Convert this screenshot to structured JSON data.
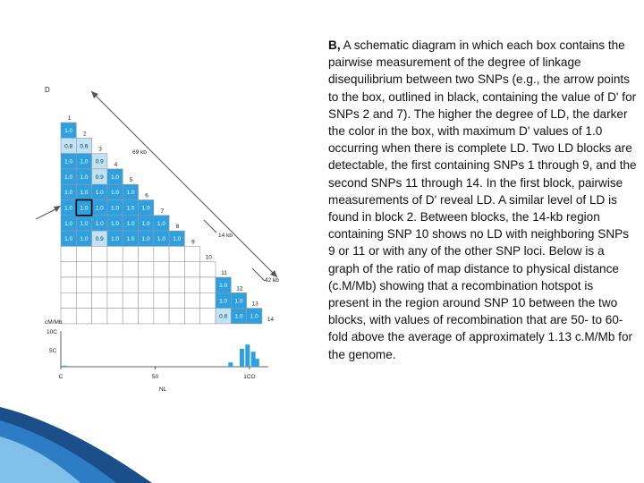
{
  "caption": {
    "prefix": "B,",
    "text": " A schematic diagram in which each box contains the pairwise measurement of the degree of linkage disequilibrium between two SNPs (e.g., the arrow points to the box, outlined in black, containing the value of D' for SNPs 2 and 7). The higher the degree of LD, the darker the color in the box, with maximum D' values of 1.0 occurring when there is complete LD. Two LD blocks are detectable, the first containing SNPs 1 through 9, and the second SNPs 11 through 14. In the first block, pairwise measurements of D' reveal LD. A similar level of LD is found in block 2. Between blocks, the 14-kb region containing SNP 10 shows no LD with neighboring SNPs 9 or 11 or with any of the other SNP loci. Below is a graph of the ratio of map distance to physical distance (c.M/Mb) showing that a recombination hotspot is present in the region around SNP 10 between the two blocks, with values of recombination that are 50- to 60-fold above the average of approximately 1.13 c.M/Mb for the genome."
  },
  "matrix": {
    "title": "D",
    "snp_labels": [
      "1",
      "2",
      "3",
      "4",
      "5",
      "6",
      "7",
      "8",
      "9",
      "10",
      "11",
      "12",
      "13",
      "14"
    ],
    "rows": [
      [
        "1.0"
      ],
      [
        "0.8",
        "0.6"
      ],
      [
        "1.0",
        "1.0",
        "0.9"
      ],
      [
        "1.0",
        "1.0",
        "0.9",
        "1.0"
      ],
      [
        "1.0",
        "1.0",
        "1.0",
        "1.0",
        "1.0"
      ],
      [
        "1.0",
        "1.0",
        "1.0",
        "1.0",
        "1.0",
        "1.0"
      ],
      [
        "1.0",
        "1.0",
        "1.0",
        "1.0",
        "1.0",
        "1.0",
        "1.0"
      ],
      [
        "1.0",
        "1.0",
        "0.9",
        "1.0",
        "1.0",
        "1.0",
        "1.0",
        "1.0"
      ],
      [
        "",
        "",
        "",
        "",
        "",
        "",
        "",
        "",
        ""
      ],
      [
        "",
        "",
        "",
        "",
        "",
        "",
        "",
        "",
        "",
        ""
      ],
      [
        "",
        "",
        "",
        "",
        "",
        "",
        "",
        "",
        "",
        "",
        "1.0"
      ],
      [
        "",
        "",
        "",
        "",
        "",
        "",
        "",
        "",
        "",
        "",
        "1.0",
        "1.0"
      ],
      [
        "",
        "",
        "",
        "",
        "",
        "",
        "",
        "",
        "",
        "",
        "0.8",
        "1.0",
        "1.0"
      ]
    ],
    "highlight": {
      "row": 5,
      "col": 1
    },
    "distance_labels": [
      "69 kb",
      "14 kb",
      "42 kb"
    ]
  },
  "chart_data": {
    "type": "bar",
    "ylabel": "cM/Mb",
    "xlabel": "NL",
    "yticks": [
      "10C",
      "5C"
    ],
    "xticks": [
      "C",
      "50",
      "1CO"
    ],
    "ylim": [
      0,
      100
    ],
    "xlim": [
      0,
      110
    ],
    "bars": [
      {
        "x": 2,
        "value": 3
      },
      {
        "x": 90,
        "value": 12
      },
      {
        "x": 96,
        "value": 50
      },
      {
        "x": 99,
        "value": 62
      },
      {
        "x": 102,
        "value": 42
      },
      {
        "x": 104,
        "value": 22
      }
    ]
  },
  "colors": {
    "cell_blue": "#2ea0e0",
    "cell_light": "#bfe3f6",
    "grid": "#9a9a9a",
    "bar": "#2ea0e0"
  }
}
